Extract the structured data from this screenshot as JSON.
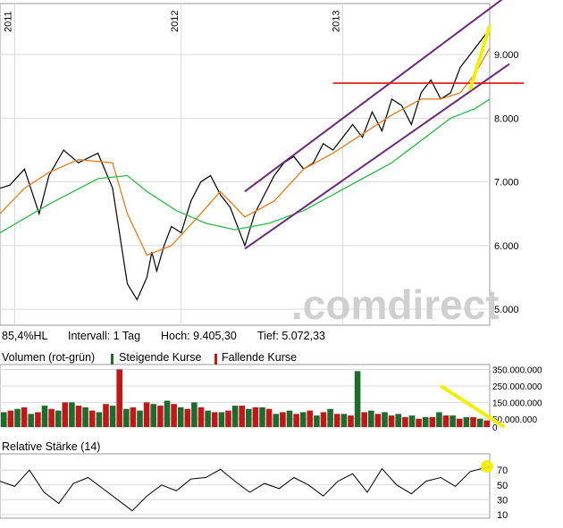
{
  "chart_data": [
    {
      "type": "line",
      "panel": "price",
      "x_ticks": [
        "2011",
        "2012",
        "2013"
      ],
      "y_ticks": [
        "9.000",
        "8.000",
        "7.000",
        "6.000",
        "5.000"
      ],
      "y_tick_values": [
        9000,
        8000,
        7000,
        6000,
        5000
      ],
      "ylim": [
        4750,
        9800
      ],
      "grid": true,
      "series": [
        {
          "role": "price",
          "color": "#000000",
          "x": [
            0.0,
            0.02,
            0.05,
            0.08,
            0.1,
            0.13,
            0.16,
            0.2,
            0.23,
            0.26,
            0.28,
            0.3,
            0.31,
            0.32,
            0.335,
            0.35,
            0.37,
            0.39,
            0.41,
            0.43,
            0.45,
            0.47,
            0.5,
            0.52,
            0.54,
            0.56,
            0.58,
            0.6,
            0.62,
            0.64,
            0.66,
            0.68,
            0.7,
            0.72,
            0.74,
            0.76,
            0.78,
            0.8,
            0.82,
            0.84,
            0.86,
            0.88,
            0.9,
            0.92,
            0.94,
            0.96,
            0.98,
            1.0
          ],
          "y": [
            6900,
            6950,
            7200,
            6500,
            7100,
            7500,
            7300,
            7450,
            6900,
            5400,
            5150,
            5500,
            5900,
            5600,
            6000,
            6300,
            6200,
            6700,
            7000,
            7100,
            6800,
            6600,
            6000,
            6500,
            6800,
            7100,
            7300,
            7400,
            7200,
            7300,
            7600,
            7500,
            7700,
            7900,
            7700,
            8100,
            7800,
            8300,
            8200,
            7900,
            8400,
            8600,
            8300,
            8400,
            8800,
            9000,
            9200,
            9405
          ]
        },
        {
          "role": "ma-short",
          "color": "#e87a1e",
          "x": [
            0.0,
            0.05,
            0.1,
            0.16,
            0.23,
            0.26,
            0.3,
            0.35,
            0.41,
            0.45,
            0.5,
            0.56,
            0.62,
            0.68,
            0.74,
            0.8,
            0.86,
            0.9,
            0.94,
            0.97,
            1.0
          ],
          "y": [
            6500,
            6900,
            7150,
            7350,
            7300,
            6500,
            5850,
            6000,
            6500,
            6850,
            6450,
            6700,
            7200,
            7450,
            7750,
            8050,
            8300,
            8300,
            8400,
            8700,
            9100
          ]
        },
        {
          "role": "ma-long",
          "color": "#2db84c",
          "x": [
            0.0,
            0.1,
            0.2,
            0.26,
            0.3,
            0.36,
            0.42,
            0.48,
            0.55,
            0.62,
            0.68,
            0.74,
            0.8,
            0.86,
            0.92,
            0.97,
            1.0
          ],
          "y": [
            6200,
            6650,
            7050,
            7100,
            6850,
            6550,
            6350,
            6250,
            6350,
            6550,
            6800,
            7050,
            7300,
            7650,
            8000,
            8150,
            8300
          ]
        }
      ],
      "annotations": [
        {
          "kind": "trend-line",
          "color": "#6a2a7a",
          "x": [
            0.5,
            1.04
          ],
          "y": [
            6850,
            9950
          ]
        },
        {
          "kind": "trend-line",
          "color": "#6a2a7a",
          "x": [
            0.5,
            1.04
          ],
          "y": [
            5950,
            8850
          ]
        },
        {
          "kind": "horizontal-line",
          "color": "#e01010",
          "x": [
            0.68,
            1.07
          ],
          "y": [
            8550,
            8550
          ]
        },
        {
          "kind": "highlight",
          "color": "#f0f000",
          "x": [
            0.96,
            1.0
          ],
          "y": [
            8450,
            9450
          ]
        }
      ]
    },
    {
      "type": "bar",
      "panel": "volume",
      "title": "Volumen (rot-grün)",
      "legend": [
        "Steigende Kurse",
        "Fallende Kurse"
      ],
      "y_ticks": [
        "350.000.000",
        "250.000.000",
        "150.000.000",
        "50.000.000",
        "0"
      ],
      "y_tick_values": [
        350000000,
        250000000,
        150000000,
        50000000,
        0
      ],
      "ylim": [
        0,
        380000000
      ],
      "grid": true,
      "series": [
        {
          "name": "Steigende Kurse",
          "color": "#1e6b2e",
          "values": [
            90000000,
            110000000,
            80000000,
            130000000,
            100000000,
            150000000,
            120000000,
            90000000,
            130000000,
            110000000,
            100000000,
            140000000,
            160000000,
            120000000,
            150000000,
            100000000,
            90000000,
            130000000,
            110000000,
            120000000,
            80000000,
            100000000,
            90000000,
            70000000,
            110000000,
            80000000,
            340000000,
            100000000,
            90000000,
            80000000,
            70000000,
            60000000,
            90000000,
            70000000,
            60000000,
            50000000
          ]
        },
        {
          "name": "Fallende Kurse",
          "color": "#c01818",
          "values": [
            100000000,
            120000000,
            90000000,
            110000000,
            150000000,
            130000000,
            100000000,
            140000000,
            350000000,
            120000000,
            150000000,
            130000000,
            140000000,
            110000000,
            120000000,
            90000000,
            100000000,
            130000000,
            120000000,
            110000000,
            90000000,
            80000000,
            100000000,
            90000000,
            80000000,
            70000000,
            90000000,
            80000000,
            70000000,
            60000000,
            50000000,
            60000000,
            70000000,
            50000000,
            60000000,
            40000000
          ]
        }
      ],
      "annotations": [
        {
          "kind": "highlight-line",
          "color": "#f0f000",
          "x": [
            0.9,
            1.03
          ],
          "y": [
            250000000,
            0
          ]
        }
      ]
    },
    {
      "type": "line",
      "panel": "rsi",
      "title": "Relative Stärke (14)",
      "y_ticks": [
        "70",
        "50",
        "30",
        "10"
      ],
      "y_tick_values": [
        70,
        50,
        30,
        10
      ],
      "ylim": [
        5,
        92
      ],
      "grid": true,
      "series": [
        {
          "color": "#000000",
          "x": [
            0.0,
            0.03,
            0.06,
            0.09,
            0.12,
            0.15,
            0.18,
            0.21,
            0.24,
            0.27,
            0.3,
            0.33,
            0.36,
            0.39,
            0.42,
            0.45,
            0.48,
            0.51,
            0.54,
            0.57,
            0.6,
            0.63,
            0.66,
            0.69,
            0.72,
            0.75,
            0.78,
            0.81,
            0.84,
            0.87,
            0.9,
            0.93,
            0.96,
            1.0
          ],
          "y": [
            55,
            48,
            70,
            40,
            25,
            52,
            60,
            45,
            30,
            15,
            35,
            50,
            42,
            58,
            60,
            71,
            55,
            40,
            52,
            45,
            60,
            50,
            35,
            55,
            65,
            40,
            72,
            50,
            38,
            55,
            60,
            48,
            68,
            75
          ]
        }
      ],
      "annotations": [
        {
          "kind": "highlight",
          "color": "#f0f000",
          "x": [
            1.0
          ],
          "y": [
            75
          ]
        }
      ]
    }
  ],
  "info": {
    "range_label": "85,4%HL",
    "interval": "Intervall: 1 Tag",
    "high": "Hoch:  9.405,30",
    "low": "Tief:   5.072,33"
  },
  "watermark": ".comdirect"
}
